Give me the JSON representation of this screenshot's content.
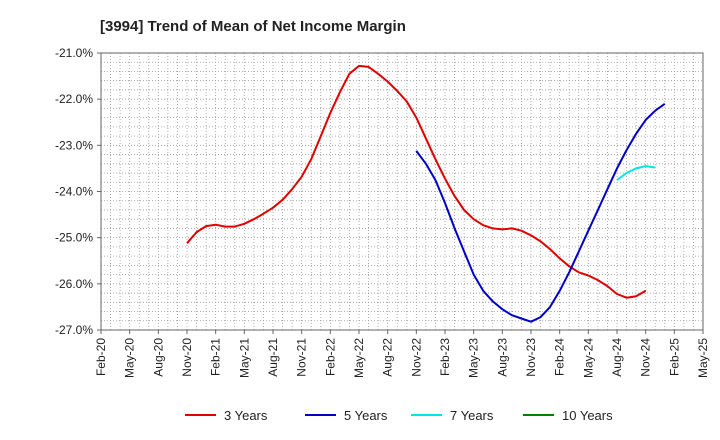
{
  "chart_data": {
    "type": "line",
    "title": "[3994]  Trend of Mean of Net Income Margin",
    "xlabel": "",
    "ylabel": "",
    "x_ticks": [
      "Feb-20",
      "May-20",
      "Aug-20",
      "Nov-20",
      "Feb-21",
      "May-21",
      "Aug-21",
      "Nov-21",
      "Feb-22",
      "May-22",
      "Aug-22",
      "Nov-22",
      "Feb-23",
      "May-23",
      "Aug-23",
      "Nov-23",
      "Feb-24",
      "May-24",
      "Aug-24",
      "Nov-24",
      "Feb-25",
      "May-25"
    ],
    "y_ticks": [
      "-21.0%",
      "-22.0%",
      "-23.0%",
      "-24.0%",
      "-25.0%",
      "-26.0%",
      "-27.0%"
    ],
    "ylim": [
      -27.0,
      -21.0
    ],
    "grid": true,
    "legend_position": "bottom",
    "series": [
      {
        "name": "3 Years",
        "color": "#e00000",
        "points": [
          [
            "2020-11",
            -25.12
          ],
          [
            "2020-12",
            -24.88
          ],
          [
            "2021-01",
            -24.75
          ],
          [
            "2021-02",
            -24.72
          ],
          [
            "2021-03",
            -24.76
          ],
          [
            "2021-04",
            -24.76
          ],
          [
            "2021-05",
            -24.7
          ],
          [
            "2021-06",
            -24.6
          ],
          [
            "2021-07",
            -24.48
          ],
          [
            "2021-08",
            -24.35
          ],
          [
            "2021-09",
            -24.18
          ],
          [
            "2021-10",
            -23.95
          ],
          [
            "2021-11",
            -23.68
          ],
          [
            "2021-12",
            -23.3
          ],
          [
            "2022-01",
            -22.8
          ],
          [
            "2022-02",
            -22.3
          ],
          [
            "2022-03",
            -21.85
          ],
          [
            "2022-04",
            -21.45
          ],
          [
            "2022-05",
            -21.28
          ],
          [
            "2022-06",
            -21.3
          ],
          [
            "2022-07",
            -21.45
          ],
          [
            "2022-08",
            -21.62
          ],
          [
            "2022-09",
            -21.82
          ],
          [
            "2022-10",
            -22.05
          ],
          [
            "2022-11",
            -22.4
          ],
          [
            "2022-12",
            -22.85
          ],
          [
            "2023-01",
            -23.3
          ],
          [
            "2023-02",
            -23.72
          ],
          [
            "2023-03",
            -24.1
          ],
          [
            "2023-04",
            -24.4
          ],
          [
            "2023-05",
            -24.6
          ],
          [
            "2023-06",
            -24.73
          ],
          [
            "2023-07",
            -24.8
          ],
          [
            "2023-08",
            -24.82
          ],
          [
            "2023-09",
            -24.8
          ],
          [
            "2023-10",
            -24.85
          ],
          [
            "2023-11",
            -24.95
          ],
          [
            "2023-12",
            -25.08
          ],
          [
            "2024-01",
            -25.25
          ],
          [
            "2024-02",
            -25.45
          ],
          [
            "2024-03",
            -25.62
          ],
          [
            "2024-04",
            -25.75
          ],
          [
            "2024-05",
            -25.82
          ],
          [
            "2024-06",
            -25.92
          ],
          [
            "2024-07",
            -26.05
          ],
          [
            "2024-08",
            -26.22
          ],
          [
            "2024-09",
            -26.3
          ],
          [
            "2024-10",
            -26.27
          ],
          [
            "2024-11",
            -26.15
          ]
        ]
      },
      {
        "name": "5 Years",
        "color": "#0000c8",
        "points": [
          [
            "2022-11",
            -23.12
          ],
          [
            "2022-12",
            -23.4
          ],
          [
            "2023-01",
            -23.75
          ],
          [
            "2023-02",
            -24.25
          ],
          [
            "2023-03",
            -24.8
          ],
          [
            "2023-04",
            -25.3
          ],
          [
            "2023-05",
            -25.8
          ],
          [
            "2023-06",
            -26.15
          ],
          [
            "2023-07",
            -26.38
          ],
          [
            "2023-08",
            -26.55
          ],
          [
            "2023-09",
            -26.68
          ],
          [
            "2023-10",
            -26.75
          ],
          [
            "2023-11",
            -26.82
          ],
          [
            "2023-12",
            -26.72
          ],
          [
            "2024-01",
            -26.5
          ],
          [
            "2024-02",
            -26.15
          ],
          [
            "2024-03",
            -25.75
          ],
          [
            "2024-04",
            -25.3
          ],
          [
            "2024-05",
            -24.85
          ],
          [
            "2024-06",
            -24.4
          ],
          [
            "2024-07",
            -23.95
          ],
          [
            "2024-08",
            -23.5
          ],
          [
            "2024-09",
            -23.1
          ],
          [
            "2024-10",
            -22.75
          ],
          [
            "2024-11",
            -22.45
          ],
          [
            "2024-12",
            -22.25
          ],
          [
            "2025-01",
            -22.1
          ]
        ]
      },
      {
        "name": "7 Years",
        "color": "#00e5e5",
        "points": [
          [
            "2024-08",
            -23.75
          ],
          [
            "2024-09",
            -23.6
          ],
          [
            "2024-10",
            -23.5
          ],
          [
            "2024-11",
            -23.45
          ],
          [
            "2024-12",
            -23.48
          ]
        ]
      },
      {
        "name": "10 Years",
        "color": "#008000",
        "points": []
      }
    ]
  }
}
